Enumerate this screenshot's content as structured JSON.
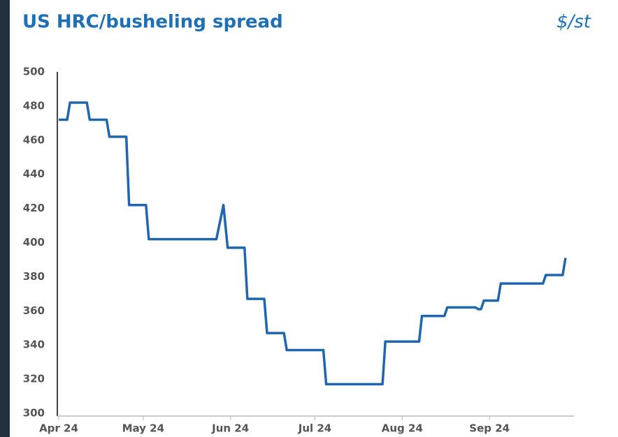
{
  "chart_data": {
    "type": "line",
    "title": "US HRC/busheling spread",
    "unit": "$/st",
    "x": [
      0,
      3,
      4,
      10,
      11,
      17,
      18,
      24,
      25,
      31,
      32,
      56,
      58.5,
      60,
      66,
      67,
      73,
      74,
      80,
      81,
      94,
      95,
      115,
      116,
      128,
      129,
      137,
      138,
      148,
      149,
      150,
      151,
      156,
      157,
      172,
      173,
      179,
      180
    ],
    "series": [
      {
        "color": "#1f66ad",
        "values": [
          472,
          472,
          482,
          482,
          472,
          472,
          462,
          462,
          422,
          422,
          402,
          402,
          422,
          397,
          397,
          367,
          367,
          347,
          347,
          337,
          337,
          317,
          317,
          342,
          342,
          357,
          357,
          362,
          362,
          361,
          361,
          366,
          366,
          376,
          376,
          381,
          381,
          391
        ]
      }
    ],
    "xlim": [
      0,
      183
    ],
    "xticks": [
      {
        "value": 0,
        "label": "Apr 24"
      },
      {
        "value": 30,
        "label": "May 24"
      },
      {
        "value": 61,
        "label": "Jun 24"
      },
      {
        "value": 91,
        "label": "Jul 24"
      },
      {
        "value": 122,
        "label": "Aug 24"
      },
      {
        "value": 153,
        "label": "Sep 24"
      }
    ],
    "ylim": [
      300,
      500
    ],
    "yticks": [
      300,
      320,
      340,
      360,
      380,
      400,
      420,
      440,
      460,
      480,
      500
    ],
    "grid": false
  }
}
